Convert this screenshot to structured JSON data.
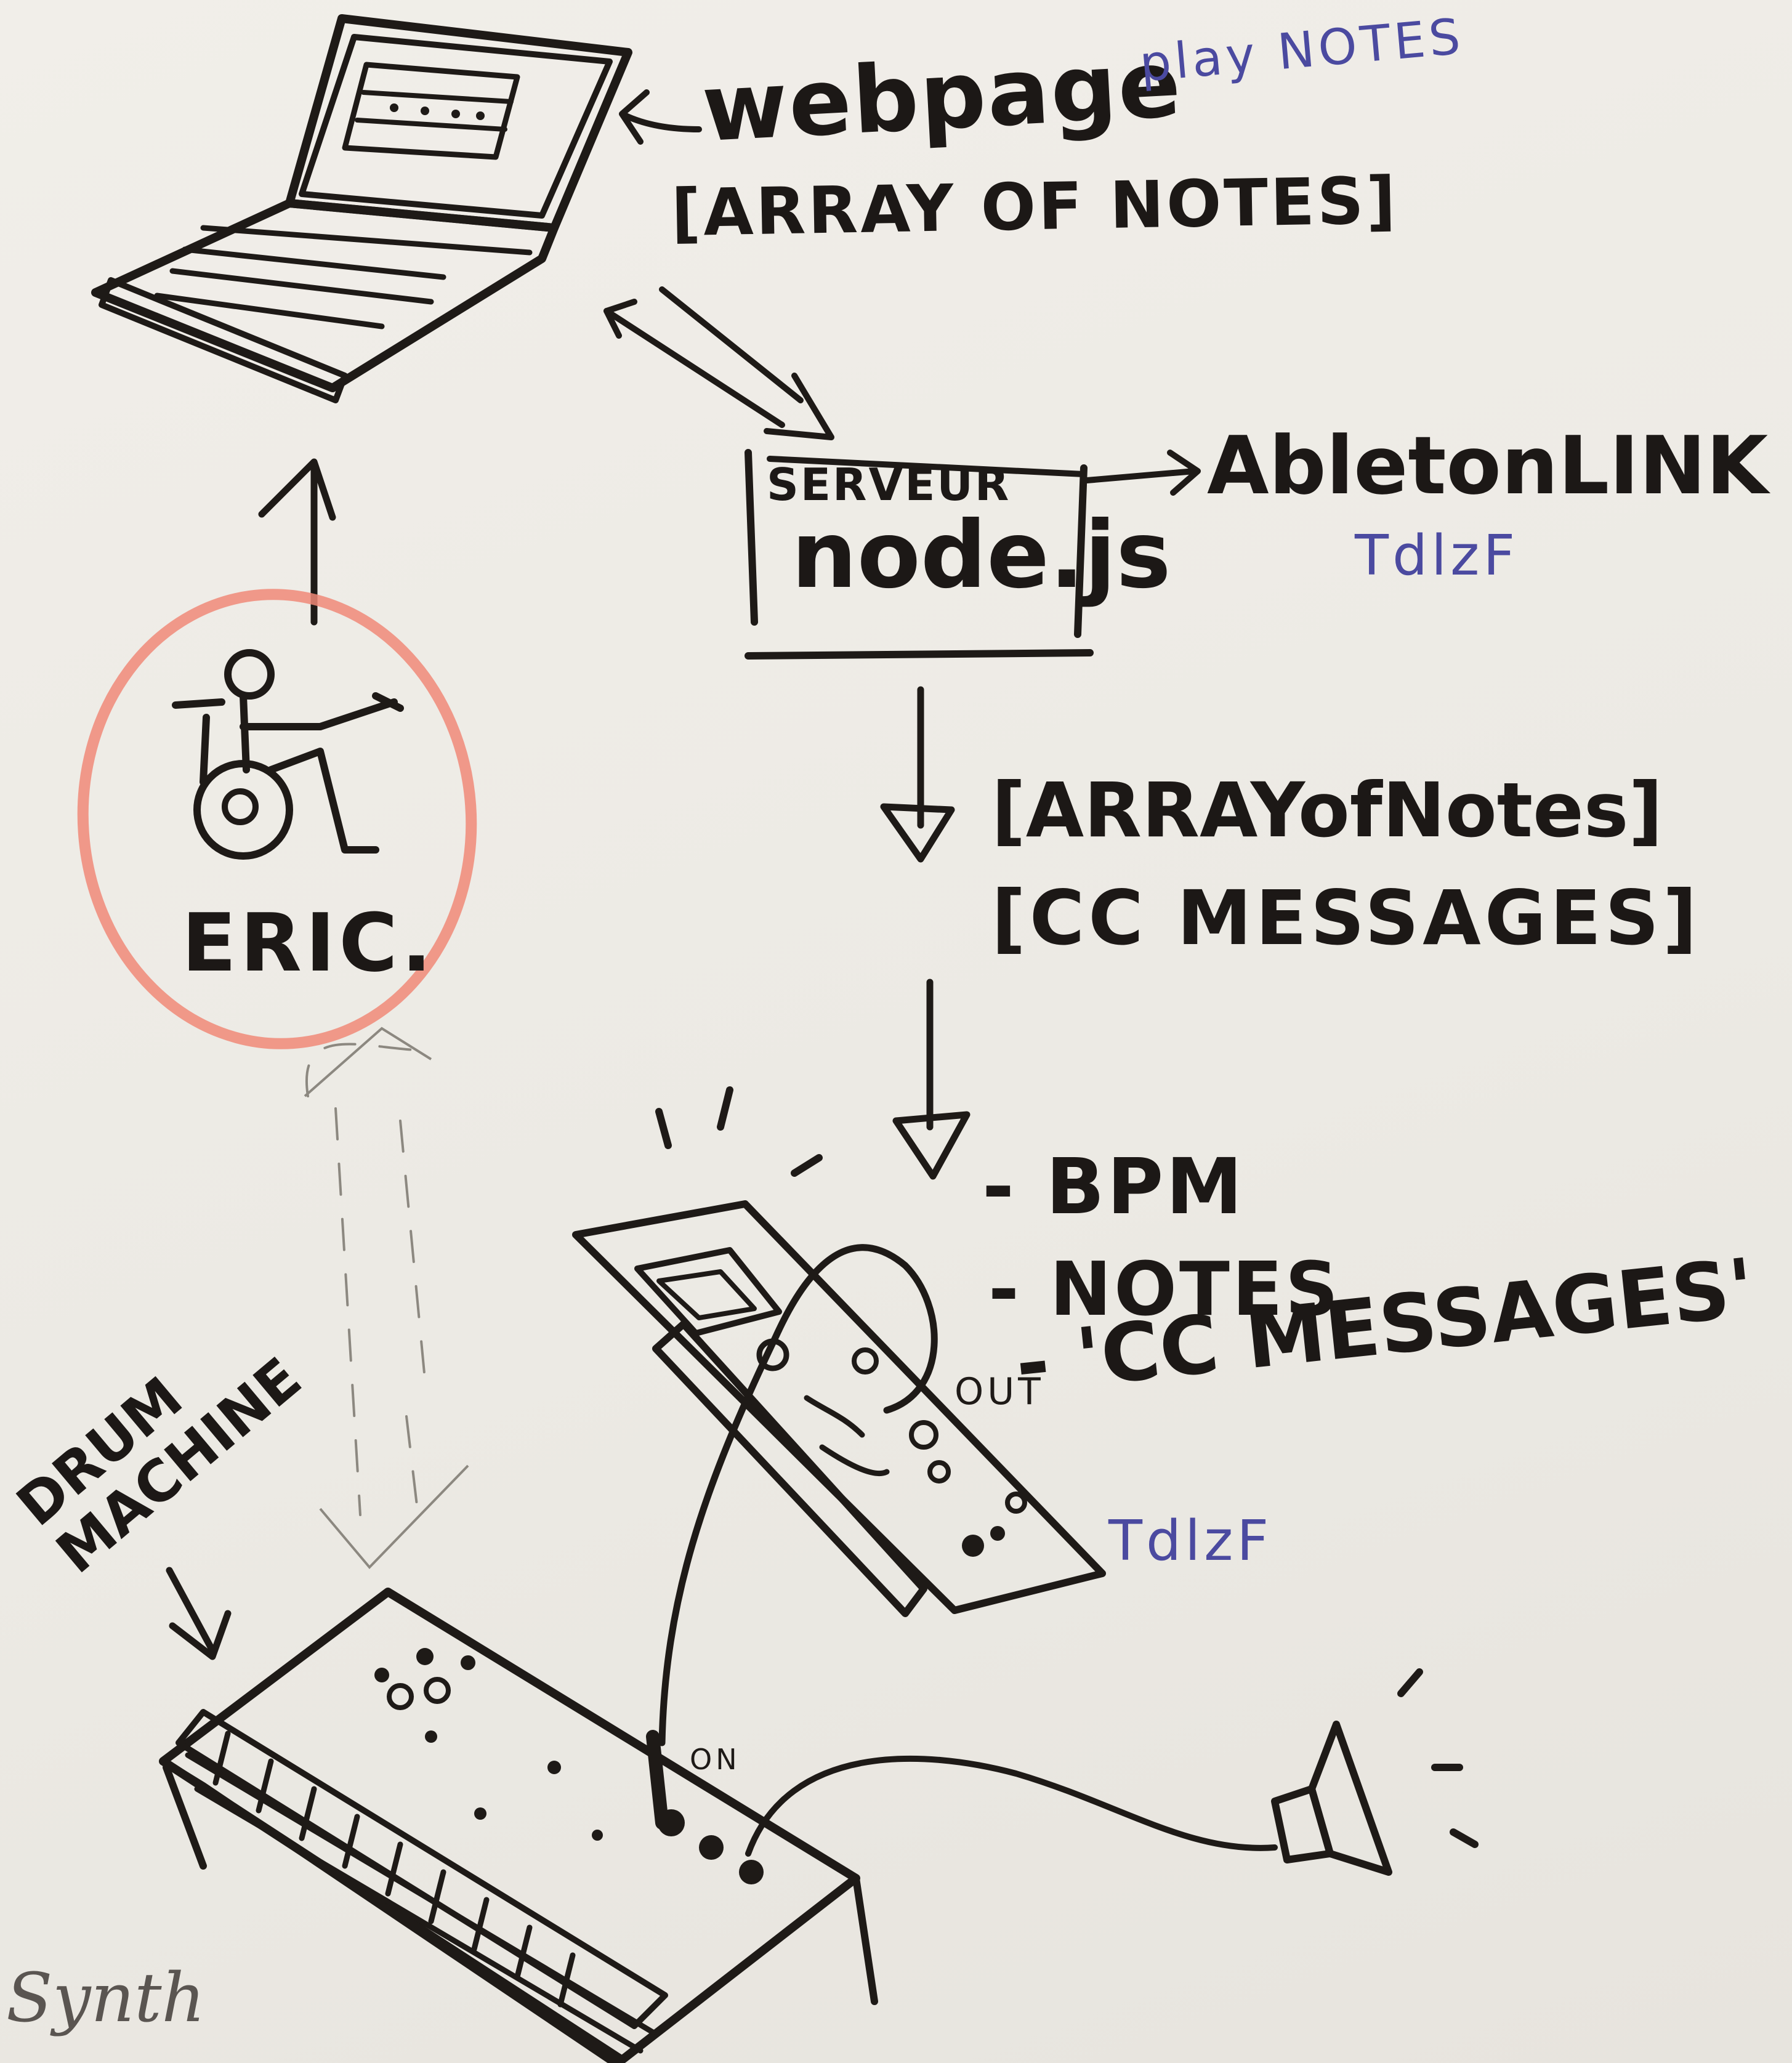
{
  "labels": {
    "webpage": "webpage",
    "array_of_notes_top": "[ARRAY OF NOTES]",
    "play_notes": "play NOTES",
    "server_small": "SERVEUR",
    "server_main": "node.js",
    "ableton_link": "AbletonLINK",
    "todo_1": "TdlzF",
    "array_of_notes_mid": "[ARRAYofNotes]",
    "cc_messages_mid": "[CC MESSAGES]",
    "eric": "ERIC.",
    "bpm": "- BPM",
    "notes": "- NOTES",
    "cc_messages_list": "- 'CC MESSAGES'",
    "out": "OUT",
    "todo_2": "TdlzF",
    "drum_machine": "DRUM MACHINE",
    "in": "ON",
    "synth": "Synth"
  },
  "colors": {
    "ink": "#1e1a17",
    "circle": "#f08a78",
    "pen": "#4b4aa0",
    "pencil": "#5a5551",
    "paper": "#efece6"
  }
}
